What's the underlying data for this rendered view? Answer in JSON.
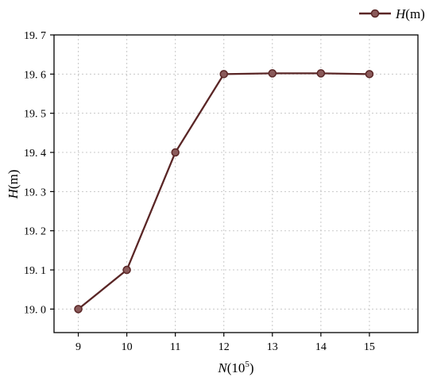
{
  "legend": {
    "symbol": "H",
    "unit": "(m)"
  },
  "axes": {
    "y_title": {
      "symbol": "H",
      "unit": "(m)"
    },
    "x_title": {
      "symbol": "N",
      "unit_base": "(10",
      "unit_exp": "5",
      "unit_close": ")"
    }
  },
  "colors": {
    "series": "#5a2626",
    "marker_fill": "#8a5a5a"
  },
  "chart_data": {
    "type": "line",
    "x": [
      9,
      10,
      11,
      12,
      13,
      14,
      15
    ],
    "series": [
      {
        "name": "H(m)",
        "values": [
          19.0,
          19.1,
          19.4,
          19.6,
          19.602,
          19.602,
          19.6
        ]
      }
    ],
    "x_ticks": [
      "9",
      "10",
      "11",
      "12",
      "13",
      "14",
      "15"
    ],
    "y_ticks": [
      "19. 0",
      "19. 1",
      "19. 2",
      "19. 3",
      "19. 4",
      "19. 5",
      "19. 6",
      "19. 7"
    ],
    "xlim": [
      8.5,
      16
    ],
    "ylim": [
      18.94,
      19.7
    ],
    "grid": true,
    "legend_position": "top-right"
  }
}
